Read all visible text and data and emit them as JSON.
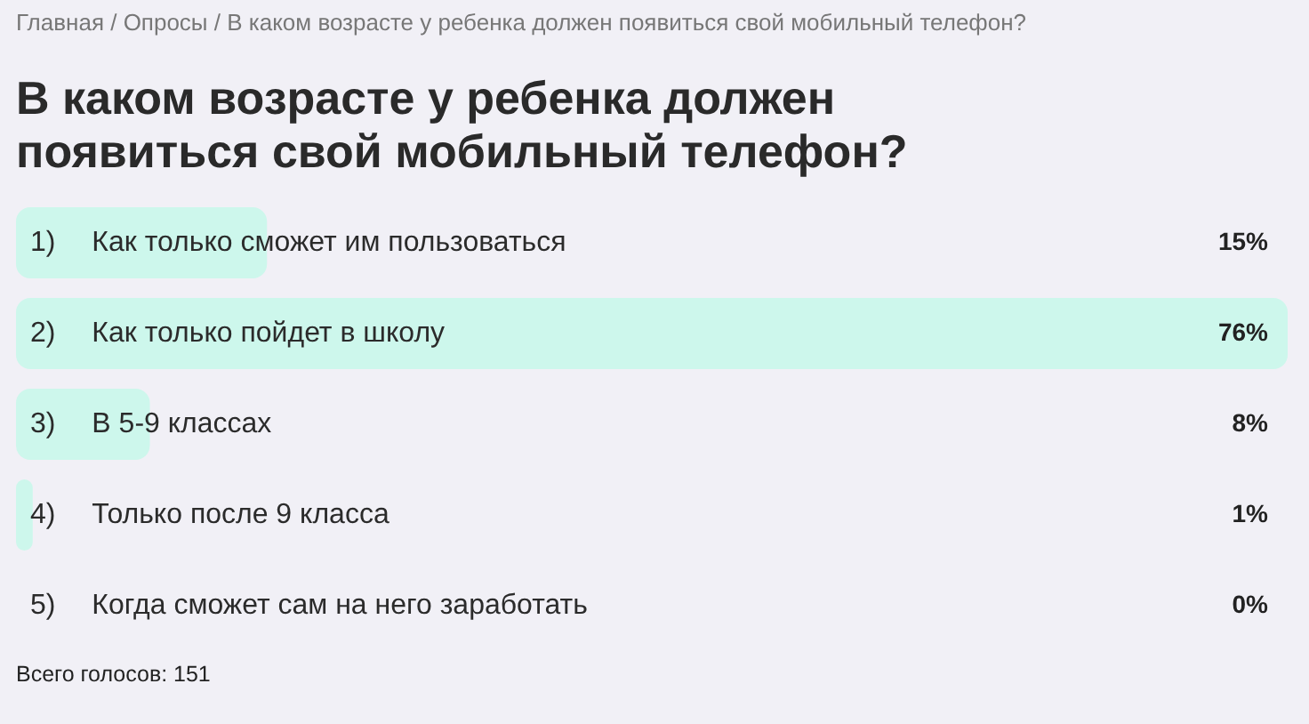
{
  "chart_data": {
    "type": "bar",
    "orientation": "horizontal",
    "subtitle": "Главная / Опросы / В каком возрасте у ребенка должен появиться свой мобильный телефон?",
    "title": "В каком возрасте у ребенка должен появиться свой мобильный телефон?",
    "categories": [
      "1) Как только сможет им пользоваться",
      "2) Как только пойдет в школу",
      "3) В 5-9 классах",
      "4) Только после 9 класса",
      "5) Когда сможет сам на него заработать"
    ],
    "values": [
      15,
      76,
      8,
      1,
      0
    ],
    "value_labels": [
      "15%",
      "76%",
      "8%",
      "1%",
      "0%"
    ],
    "color": "#cdf7ec",
    "annotations": [
      "Всего голосов: 151"
    ]
  }
}
